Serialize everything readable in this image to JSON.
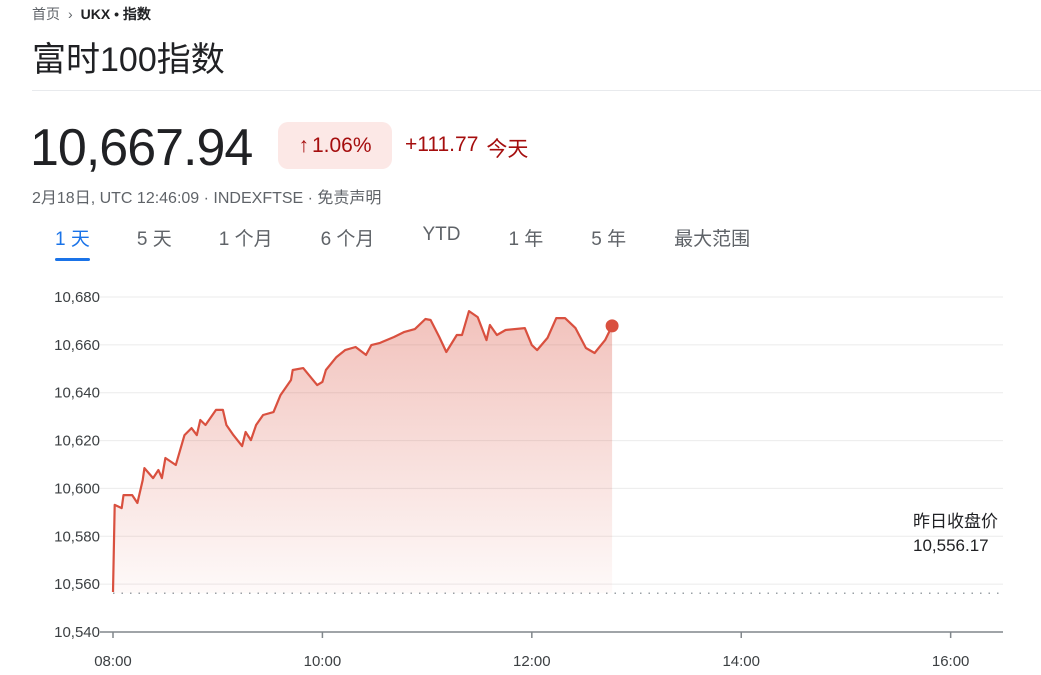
{
  "breadcrumb": {
    "home": "首页",
    "current": "UKX • 指数"
  },
  "title": "富时100指数",
  "quote": {
    "price": "10,667.94",
    "change_percent": "1.06%",
    "change_abs": "+111.77",
    "period": "今天",
    "meta": "2月18日, UTC 12:46:09 · INDEXFTSE · 免责声明"
  },
  "tabs": [
    {
      "label": "1 天",
      "active": true
    },
    {
      "label": "5 天"
    },
    {
      "label": "1 个月"
    },
    {
      "label": "6 个月"
    },
    {
      "label": "YTD"
    },
    {
      "label": "1 年"
    },
    {
      "label": "5 年"
    },
    {
      "label": "最大范围"
    }
  ],
  "previous_close": {
    "label": "昨日收盘价",
    "value": "10,556.17"
  },
  "colors": {
    "line": "#d9503f",
    "negative": "#a50e0e",
    "accent": "#1a73e8"
  },
  "chart_data": {
    "type": "area",
    "x_ticks": [
      "08:00",
      "10:00",
      "12:00",
      "14:00",
      "16:00"
    ],
    "y_ticks": [
      "10,540",
      "10,560",
      "10,580",
      "10,600",
      "10,620",
      "10,640",
      "10,660",
      "10,680"
    ],
    "xlim": [
      "08:00",
      "16:30"
    ],
    "ylim": [
      10540,
      10680
    ],
    "grid": true,
    "previous_close": 10556.17,
    "series": [
      {
        "points": [
          [
            "08:00",
            10556.7
          ],
          [
            "08:01",
            10593.1
          ],
          [
            "08:05",
            10591.8
          ],
          [
            "08:06",
            10597.2
          ],
          [
            "08:11",
            10597.2
          ],
          [
            "08:14",
            10593.9
          ],
          [
            "08:17",
            10603.5
          ],
          [
            "08:18",
            10608.5
          ],
          [
            "08:23",
            10604.3
          ],
          [
            "08:26",
            10607.7
          ],
          [
            "08:28",
            10604.3
          ],
          [
            "08:30",
            10612.7
          ],
          [
            "08:36",
            10609.8
          ],
          [
            "08:41",
            10622.3
          ],
          [
            "08:45",
            10625.2
          ],
          [
            "08:48",
            10622.3
          ],
          [
            "08:50",
            10628.6
          ],
          [
            "08:53",
            10626.5
          ],
          [
            "08:59",
            10632.8
          ],
          [
            "09:03",
            10632.8
          ],
          [
            "09:05",
            10626.5
          ],
          [
            "09:09",
            10622.3
          ],
          [
            "09:14",
            10617.7
          ],
          [
            "09:16",
            10623.6
          ],
          [
            "09:19",
            10620.2
          ],
          [
            "09:22",
            10626.5
          ],
          [
            "09:26",
            10630.7
          ],
          [
            "09:32",
            10631.9
          ],
          [
            "09:36",
            10639.0
          ],
          [
            "09:42",
            10645.3
          ],
          [
            "09:43",
            10649.5
          ],
          [
            "09:49",
            10650.3
          ],
          [
            "09:57",
            10643.2
          ],
          [
            "10:00",
            10644.5
          ],
          [
            "10:02",
            10649.5
          ],
          [
            "10:08",
            10654.9
          ],
          [
            "10:13",
            10657.8
          ],
          [
            "10:19",
            10659.1
          ],
          [
            "10:25",
            10655.8
          ],
          [
            "10:28",
            10659.9
          ],
          [
            "10:33",
            10660.8
          ],
          [
            "10:41",
            10663.3
          ],
          [
            "10:47",
            10665.4
          ],
          [
            "10:53",
            10666.6
          ],
          [
            "10:59",
            10670.8
          ],
          [
            "11:02",
            10670.4
          ],
          [
            "11:07",
            10663.3
          ],
          [
            "11:11",
            10657.0
          ],
          [
            "11:17",
            10664.1
          ],
          [
            "11:20",
            10664.1
          ],
          [
            "11:24",
            10674.1
          ],
          [
            "11:29",
            10671.6
          ],
          [
            "11:34",
            10662.0
          ],
          [
            "11:36",
            10668.3
          ],
          [
            "11:40",
            10664.1
          ],
          [
            "11:45",
            10666.2
          ],
          [
            "11:56",
            10667.0
          ],
          [
            "12:00",
            10659.9
          ],
          [
            "12:03",
            10657.8
          ],
          [
            "12:09",
            10662.9
          ],
          [
            "12:14",
            10671.2
          ],
          [
            "12:19",
            10671.2
          ],
          [
            "12:25",
            10667.0
          ],
          [
            "12:31",
            10658.7
          ],
          [
            "12:36",
            10656.6
          ],
          [
            "12:42",
            10662.0
          ],
          [
            "12:46",
            10667.94
          ]
        ]
      }
    ]
  }
}
